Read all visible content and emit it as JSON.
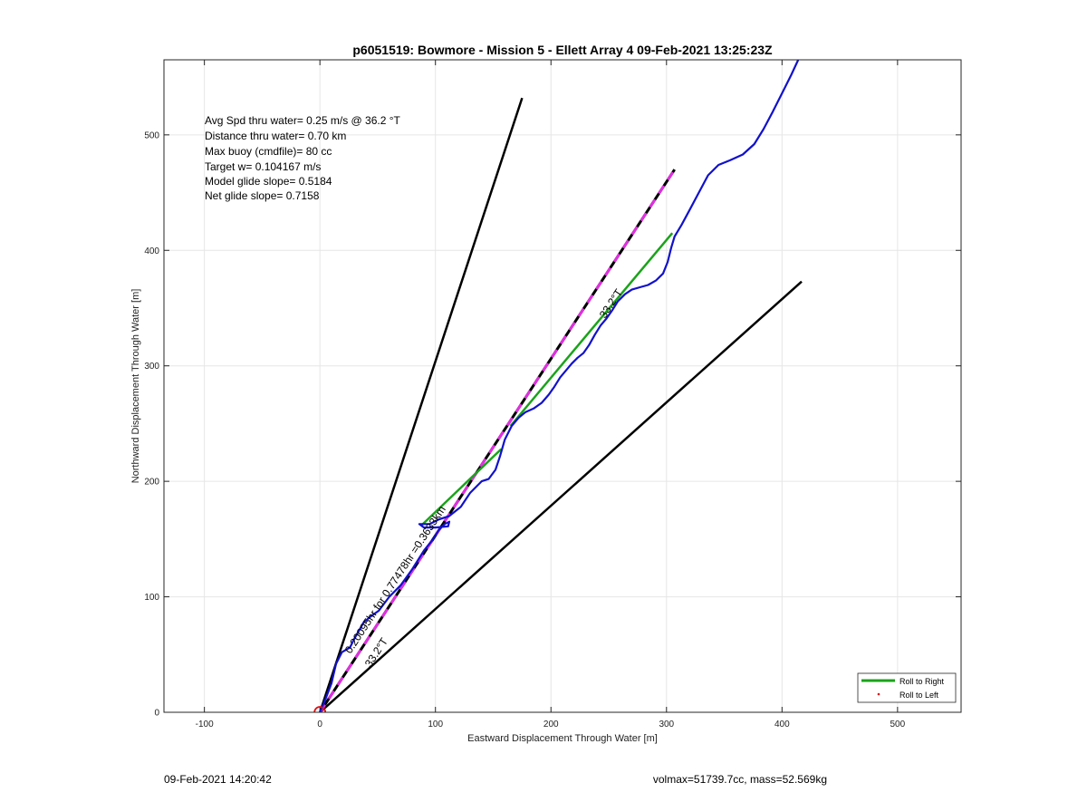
{
  "chart_data": {
    "type": "line",
    "title": "p6051519: Bowmore - Mission 5 - Ellett Array 4 09-Feb-2021 13:25:23Z",
    "xlabel": "Eastward Displacement Through Water [m]",
    "ylabel": "Northward Displacement Through Water [m]",
    "xlim": [
      -135,
      555
    ],
    "ylim": [
      0,
      565
    ],
    "xticks": [
      -100,
      0,
      100,
      200,
      300,
      400,
      500
    ],
    "yticks": [
      0,
      100,
      200,
      300,
      400,
      500
    ],
    "grid": true,
    "stats": [
      "Avg Spd thru water=  0.25 m/s @  36.2 °T",
      "Distance thru water=  0.70 km",
      "Max buoy (cmdfile)= 80 cc",
      "Target w= 0.104167 m/s",
      "Model glide slope= 0.5184",
      "Net glide slope= 0.7158"
    ],
    "annotations": {
      "track_label": "0.20095hr for 0.77478hr =0.3633km",
      "heading_label_upper": "33.2°T",
      "heading_label_lower": "33.2°T"
    },
    "legend": {
      "placement": "bottom-right",
      "entries": [
        {
          "label": "Roll to Right",
          "color": "#1aa31a",
          "style": "line"
        },
        {
          "label": "Roll to Left",
          "color": "#e01010",
          "style": "dot"
        }
      ]
    },
    "series": [
      {
        "role": "heading-cone-left",
        "color": "#000000",
        "points": [
          [
            0,
            0
          ],
          [
            175,
            532
          ]
        ]
      },
      {
        "role": "heading-cone-right",
        "color": "#000000",
        "points": [
          [
            0,
            0
          ],
          [
            417,
            373
          ]
        ]
      },
      {
        "role": "heading-center",
        "color": "#000000",
        "dash_color": "#e030e0",
        "points": [
          [
            0,
            0
          ],
          [
            307,
            470
          ]
        ]
      },
      {
        "role": "roll-to-right-segments",
        "color": "#1aa31a",
        "segments": [
          [
            [
              88,
              162
            ],
            [
              157,
              228
            ]
          ],
          [
            [
              165,
              248
            ],
            [
              305,
              415
            ]
          ]
        ]
      },
      {
        "role": "track",
        "color": "#1111cc",
        "points": [
          [
            0,
            0
          ],
          [
            5,
            12
          ],
          [
            10,
            25
          ],
          [
            14,
            42
          ],
          [
            19,
            52
          ],
          [
            26,
            56
          ],
          [
            30,
            64
          ],
          [
            38,
            78
          ],
          [
            44,
            83
          ],
          [
            51,
            88
          ],
          [
            60,
            100
          ],
          [
            70,
            110
          ],
          [
            80,
            124
          ],
          [
            90,
            140
          ],
          [
            98,
            150
          ],
          [
            103,
            158
          ],
          [
            108,
            163
          ],
          [
            112,
            165
          ],
          [
            111,
            161
          ],
          [
            100,
            160
          ],
          [
            90,
            160
          ],
          [
            86,
            163
          ],
          [
            95,
            163
          ],
          [
            103,
            167
          ],
          [
            112,
            170
          ],
          [
            122,
            178
          ],
          [
            130,
            190
          ],
          [
            140,
            200
          ],
          [
            146,
            202
          ],
          [
            152,
            210
          ],
          [
            156,
            222
          ],
          [
            160,
            236
          ],
          [
            166,
            248
          ],
          [
            172,
            255
          ],
          [
            178,
            260
          ],
          [
            185,
            263
          ],
          [
            192,
            268
          ],
          [
            198,
            275
          ],
          [
            203,
            282
          ],
          [
            208,
            290
          ],
          [
            213,
            296
          ],
          [
            218,
            302
          ],
          [
            223,
            307
          ],
          [
            228,
            311
          ],
          [
            233,
            318
          ],
          [
            238,
            327
          ],
          [
            243,
            335
          ],
          [
            248,
            341
          ],
          [
            253,
            348
          ],
          [
            258,
            356
          ],
          [
            264,
            362
          ],
          [
            270,
            366
          ],
          [
            277,
            368
          ],
          [
            284,
            370
          ],
          [
            291,
            374
          ],
          [
            297,
            380
          ],
          [
            301,
            390
          ],
          [
            304,
            402
          ],
          [
            307,
            412
          ],
          [
            313,
            422
          ],
          [
            320,
            435
          ],
          [
            328,
            450
          ],
          [
            336,
            465
          ],
          [
            345,
            474
          ],
          [
            355,
            478
          ],
          [
            366,
            483
          ],
          [
            376,
            492
          ],
          [
            384,
            505
          ],
          [
            392,
            520
          ],
          [
            400,
            536
          ],
          [
            408,
            552
          ],
          [
            414,
            565
          ]
        ]
      }
    ],
    "origin_marker": {
      "x": 0,
      "y": 0,
      "color": "#e01010"
    },
    "footer": {
      "left": "09-Feb-2021 14:20:42",
      "right": "volmax=51739.7cc, mass=52.569kg"
    }
  }
}
